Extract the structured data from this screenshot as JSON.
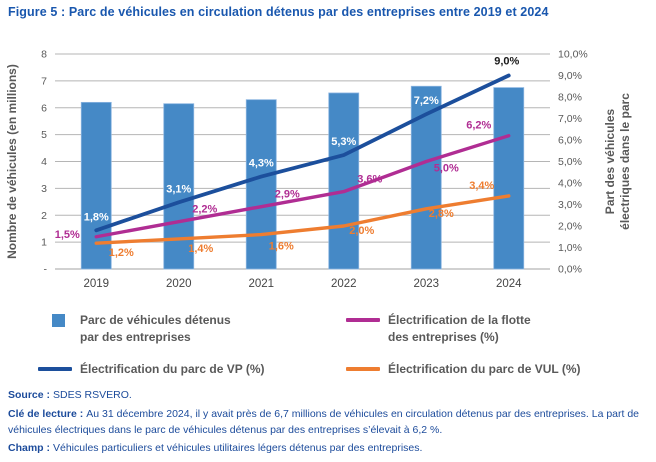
{
  "header": {
    "title_prefix": "Figure 5 :",
    "title_rest": "Parc de véhicules en circulation détenus par des entreprises entre 2019 et 2024"
  },
  "chart_data": {
    "type": "combo-bar-line",
    "categories": [
      "2019",
      "2020",
      "2021",
      "2022",
      "2023",
      "2024"
    ],
    "bar_series": {
      "name": "Parc de véhicules détenus par des entreprises",
      "axis": "left",
      "values": [
        6.2,
        6.15,
        6.3,
        6.55,
        6.8,
        6.75
      ],
      "color": "#4589C6",
      "edge_color": "#8AB4E0"
    },
    "line_series": [
      {
        "name": "Électrification du parc de VP (%)",
        "axis": "right",
        "values": [
          1.8,
          3.1,
          4.3,
          5.3,
          7.2,
          9.0
        ],
        "labels": [
          "1,8%",
          "3,1%",
          "4,3%",
          "5,3%",
          "7,2%",
          "9,0%"
        ],
        "color": "#1C4F9C",
        "label_colors": [
          "#ffffff",
          "#ffffff",
          "#ffffff",
          "#ffffff",
          "#ffffff",
          "#1a1a1a"
        ]
      },
      {
        "name": "Électrification de la flotte des entreprises (%)",
        "axis": "right",
        "values": [
          1.5,
          2.2,
          2.9,
          3.6,
          5.0,
          6.2
        ],
        "labels": [
          "1,5%",
          "2,2%",
          "2,9%",
          "3,6%",
          "5,0%",
          "6,2%"
        ],
        "color": "#B02D93"
      },
      {
        "name": "Électrification du parc de VUL (%)",
        "axis": "right",
        "values": [
          1.2,
          1.4,
          1.6,
          2.0,
          2.8,
          3.4
        ],
        "labels": [
          "1,2%",
          "1,4%",
          "1,6%",
          "2,0%",
          "2,8%",
          "3,4%"
        ],
        "color": "#EE7D30"
      }
    ],
    "left_axis": {
      "title": "Nombre de véhicules (en millions)",
      "min": 0,
      "max": 8,
      "step": 1,
      "tick_labels": [
        "-",
        "1",
        "2",
        "3",
        "4",
        "5",
        "6",
        "7",
        "8"
      ]
    },
    "right_axis": {
      "title_line1": "Part des véhicules",
      "title_line2": "électriques dans le parc",
      "min": 0,
      "max": 10,
      "step": 1,
      "tick_labels": [
        "0,0%",
        "1,0%",
        "2,0%",
        "3,0%",
        "4,0%",
        "5,0%",
        "6,0%",
        "7,0%",
        "8,0%",
        "9,0%",
        "10,0%"
      ]
    },
    "grid": true,
    "grid_color": "#b5b5b5",
    "legend_position": "bottom"
  },
  "legend": {
    "items": [
      {
        "marker": "square",
        "color": "#4589C6",
        "lines": [
          "Parc de véhicules détenus",
          "par des entreprises"
        ]
      },
      {
        "marker": "line",
        "color": "#B02D93",
        "lines": [
          "Électrification de la flotte",
          "des entreprises (%)"
        ]
      },
      {
        "marker": "line",
        "color": "#1C4F9C",
        "lines": [
          "Électrification du parc de VP (%)"
        ]
      },
      {
        "marker": "line",
        "color": "#EE7D30",
        "lines": [
          "Électrification du parc de VUL (%)"
        ]
      }
    ]
  },
  "notes": [
    {
      "label": "Source :",
      "text": "SDES RSVERO."
    },
    {
      "label": "Clé de lecture :",
      "text": "Au 31 décembre 2024, il y avait près de 6,7 millions de véhicules en circulation détenus par des entreprises. La part de véhicules électriques dans le parc de véhicules détenus par des entreprises s’élevait à 6,2 %."
    },
    {
      "label": "Champ :",
      "text": "Véhicules particuliers et véhicules utilitaires légers détenus par des entreprises."
    }
  ],
  "colors": {
    "title": "#1957AE",
    "notes_text": "#1C4B9B",
    "axis_text": "#595959",
    "x_labels": "#454545"
  }
}
